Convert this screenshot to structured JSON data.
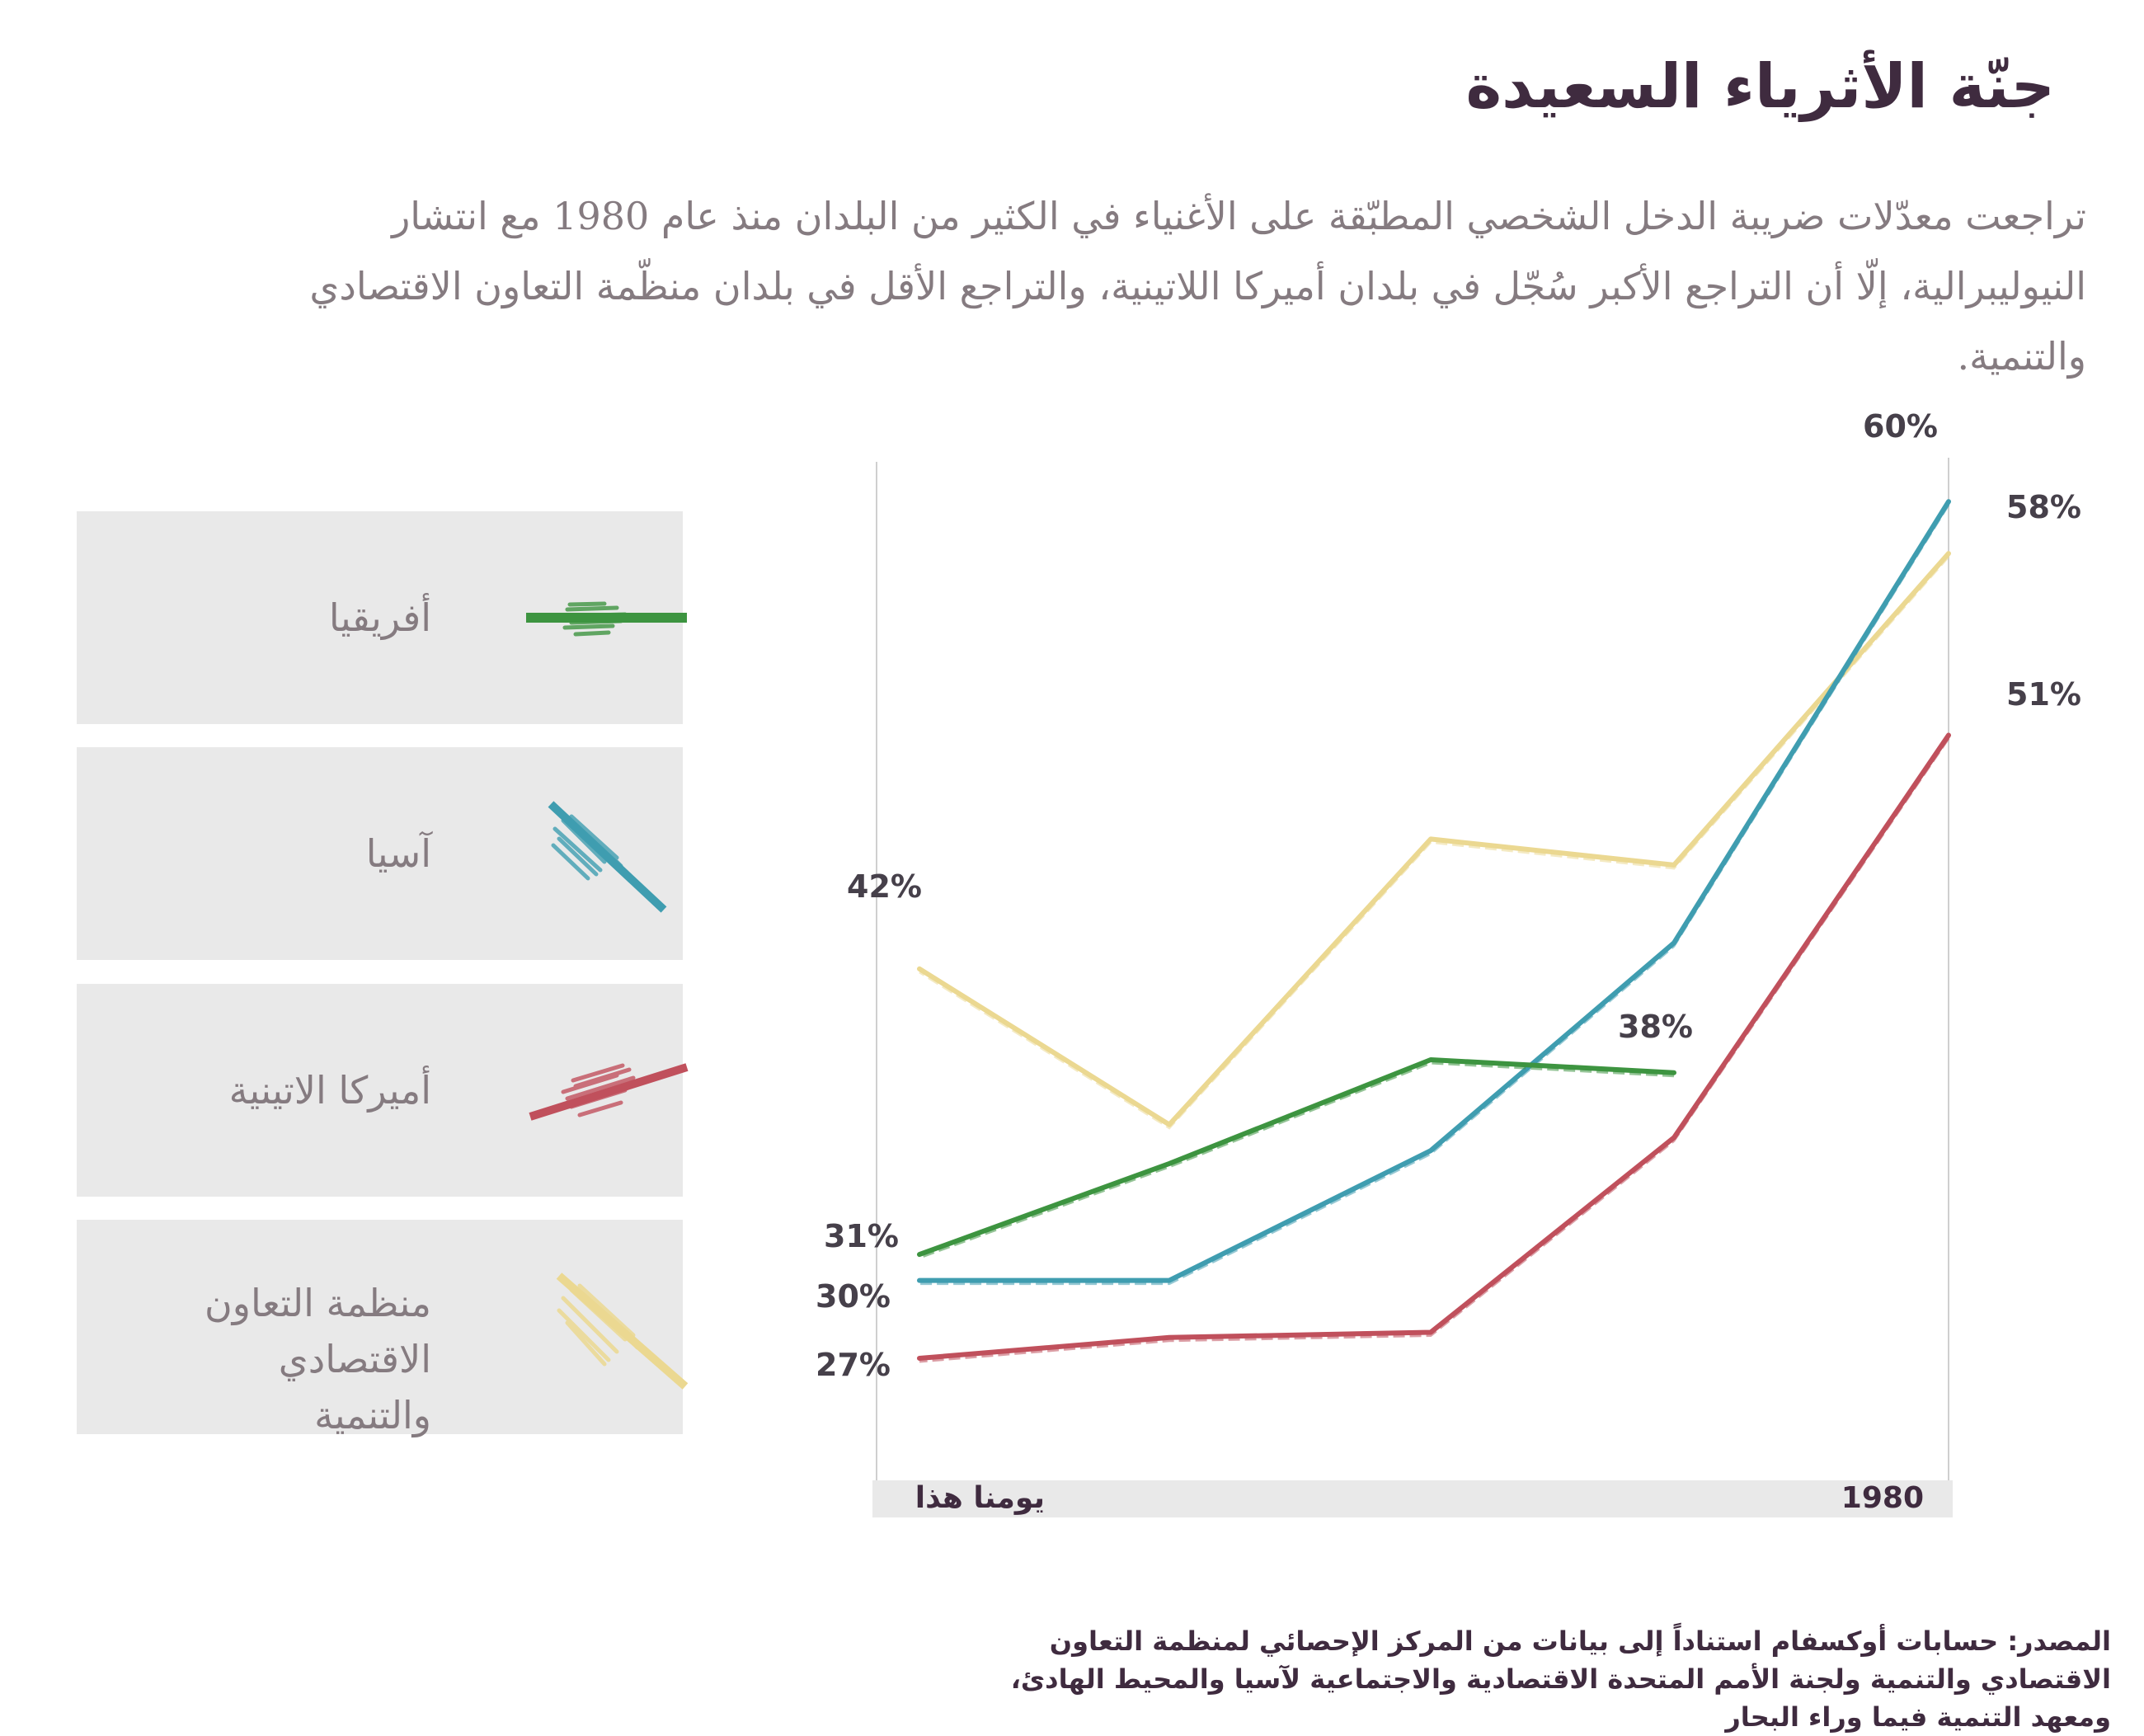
{
  "title": "جنّة الأثرياء السعيدة",
  "subtitle": "تراجعت معدّلات ضريبة الدخل الشخصي المطبّقة على الأغنياء في الكثير من البلدان منذ عام 1980 مع انتشار النيوليبرالية، إلّا أن التراجع الأكبر سُجّل في بلدان أميركا اللاتينية، والتراجع الأقل في بلدان منظّمة التعاون الاقتصادي والتنمية.",
  "legend": [
    {
      "label": "أفريقيا",
      "color": "#3d9440"
    },
    {
      "label": "آسيا",
      "color": "#3f9db0"
    },
    {
      "label": "أميركا الاتينية",
      "color": "#c0505c"
    },
    {
      "label": "منظمة التعاون الاقتصادي والتنمية",
      "color": "#ebd891"
    }
  ],
  "chart_data": {
    "type": "line",
    "x_axis_labels": [
      "1980",
      "يومنا هذا"
    ],
    "x_reversed": true,
    "series": [
      {
        "name": "منظمة التعاون الاقتصادي والتنمية",
        "color": "#ebd891",
        "values": [
          58,
          46,
          47,
          36,
          42
        ],
        "start_label": "58%",
        "end_label": "42%"
      },
      {
        "name": "آسيا",
        "color": "#3f9db0",
        "values": [
          60,
          43,
          35,
          30,
          30
        ],
        "start_label": "60%",
        "end_label": "30%"
      },
      {
        "name": "أفريقيا",
        "color": "#3d9440",
        "values": [
          null,
          38,
          38.5,
          34.5,
          31
        ],
        "start_label": "38%",
        "end_label": "31%"
      },
      {
        "name": "أميركا الاتينية",
        "color": "#c0505c",
        "values": [
          51,
          35.5,
          28,
          27.8,
          27
        ],
        "start_label": "51%",
        "end_label": "27%"
      }
    ],
    "grid": false,
    "legend_position": "left"
  },
  "source": "المصدر: حسابات أوكسفام استناداً إلى بيانات من المركز الإحصائي لمنظمة التعاون الاقتصادي والتنمية ولجنة الأمم المتحدة الاقتصادية والاجتماعية لآسيا والمحيط الهادئ، ومعهد التنمية فيما وراء البحار"
}
